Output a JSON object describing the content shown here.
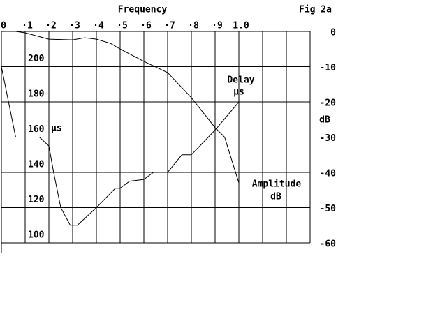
{
  "chart_data": {
    "type": "line",
    "title": "Frequency",
    "figure_label": "Fig 2a",
    "xlim": [
      0,
      1.3
    ],
    "xticks": [
      0,
      {
        "value": 0.1,
        "label": "·1"
      },
      {
        "value": 0.2,
        "label": "·2"
      },
      {
        "value": 0.3,
        "label": "·3"
      },
      {
        "value": 0.4,
        "label": "·4"
      },
      {
        "value": 0.5,
        "label": "·5"
      },
      {
        "value": 0.6,
        "label": "·6"
      },
      {
        "value": 0.7,
        "label": "·7"
      },
      {
        "value": 0.8,
        "label": "·8"
      },
      {
        "value": 0.9,
        "label": "·9"
      },
      {
        "value": 1,
        "label": "1.0"
      }
    ],
    "xminor": [
      1.1,
      1.2,
      1.3
    ],
    "ylim": [
      100,
      220
    ],
    "yticks": [
      100,
      120,
      140,
      160,
      180,
      200
    ],
    "ylabel": "µs",
    "y2lim": [
      -60,
      0
    ],
    "y2ticks": [
      0,
      -10,
      -20,
      -30,
      -40,
      -50,
      -60
    ],
    "y2label": "dB",
    "grid": true,
    "color": "#000000",
    "series": [
      {
        "name": "Delay",
        "unit": "µs",
        "color": "#000000",
        "x": [
          0,
          0.06,
          null,
          0.16,
          0.2,
          0.22,
          0.25,
          0.29,
          0.32,
          0.4,
          0.48,
          0.5,
          0.54,
          0.6,
          0.64,
          0.7,
          0.76,
          0.8,
          0.9,
          1.0
        ],
        "values": [
          200,
          160,
          null,
          160,
          155,
          140,
          120,
          110,
          110,
          120,
          131,
          131,
          135,
          136,
          140,
          140,
          150,
          150,
          164,
          180
        ]
      },
      {
        "name": "Amplitude",
        "unit": "dB",
        "axis": "y2",
        "color": "#000000",
        "x": [
          0.06,
          0.1,
          0.2,
          0.3,
          0.35,
          0.4,
          0.46,
          0.5,
          0.6,
          0.7,
          0.8,
          0.9,
          0.94,
          1.0
        ],
        "values": [
          0,
          -0.4,
          -2.2,
          -2.4,
          -1.8,
          -2.2,
          -3.4,
          -5,
          -8.5,
          -11.7,
          -18.8,
          -27.3,
          -30,
          -43
        ]
      }
    ]
  }
}
